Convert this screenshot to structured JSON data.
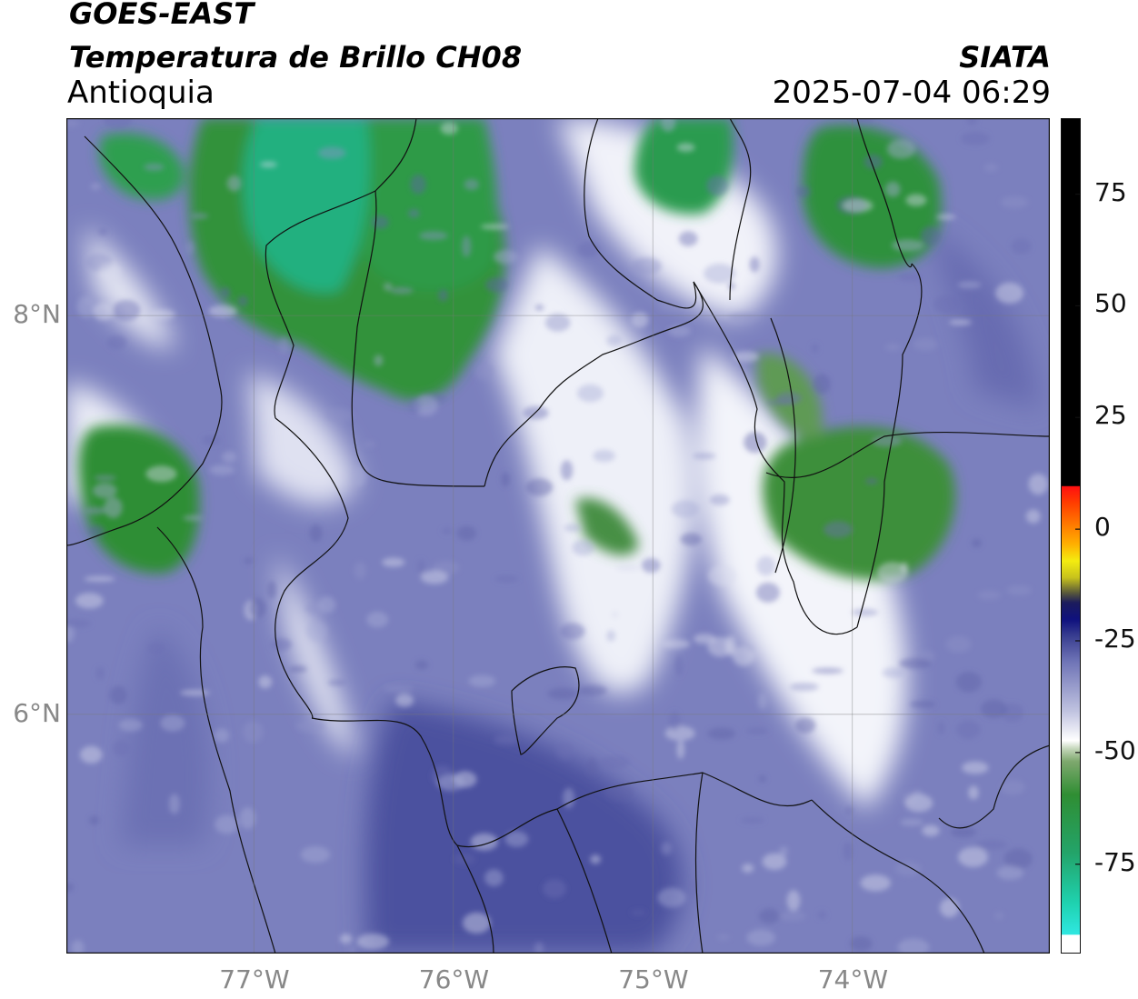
{
  "header": {
    "satellite": "GOES-EAST",
    "variable": "Temperatura de Brillo CH08",
    "region": "Antioquia",
    "organization": "SIATA",
    "datetime": "2025-07-04 06:29"
  },
  "map": {
    "lon_range": [
      -77.94,
      -73.01
    ],
    "lat_range": [
      4.8,
      8.99
    ],
    "lat_ticks": [
      {
        "value": 8,
        "label": "8°N"
      },
      {
        "value": 6,
        "label": "6°N"
      }
    ],
    "lon_ticks": [
      {
        "value": -77,
        "label": "77°W"
      },
      {
        "value": -76,
        "label": "76°W"
      },
      {
        "value": -75,
        "label": "75°W"
      },
      {
        "value": -74,
        "label": "74°W"
      }
    ],
    "gridlines": true,
    "colors": {
      "warm_bg": "#7a7fbd",
      "deep_blue": "#4a4f9e",
      "white": "#f4f4fb",
      "green": "#2f8f3a",
      "teal": "#22b07c",
      "border": "#111111"
    }
  },
  "colorbar": {
    "range": [
      -95,
      92
    ],
    "ticks": [
      {
        "value": 75,
        "label": "75"
      },
      {
        "value": 50,
        "label": "50"
      },
      {
        "value": 25,
        "label": "25"
      },
      {
        "value": 0,
        "label": "0"
      },
      {
        "value": -25,
        "label": "-25"
      },
      {
        "value": -50,
        "label": "-50"
      },
      {
        "value": -75,
        "label": "-75"
      }
    ]
  }
}
